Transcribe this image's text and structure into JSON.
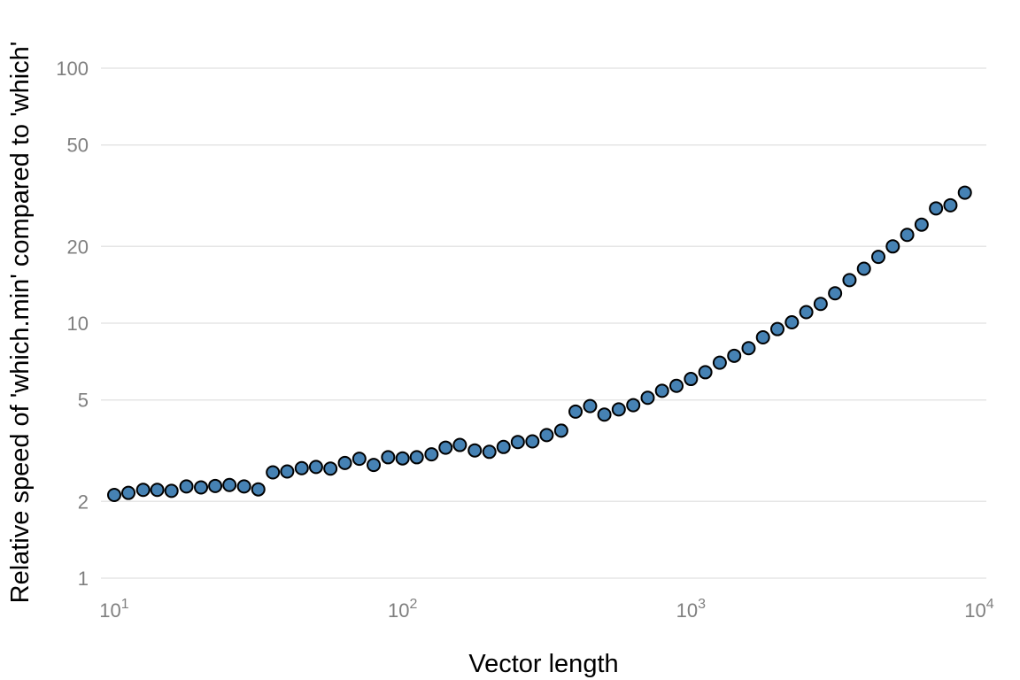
{
  "chart_data": {
    "type": "scatter",
    "title": "",
    "xlabel": "Vector length",
    "ylabel": "Relative speed of 'which.min' compared to 'which'",
    "x_scale": "log10",
    "y_scale": "log10",
    "xlim": [
      10,
      10000
    ],
    "ylim": [
      1,
      100
    ],
    "x_ticks": [
      {
        "value": 10,
        "base": "10",
        "exp": "1"
      },
      {
        "value": 100,
        "base": "10",
        "exp": "2"
      },
      {
        "value": 1000,
        "base": "10",
        "exp": "3"
      },
      {
        "value": 10000,
        "base": "10",
        "exp": "4"
      }
    ],
    "y_ticks": [
      {
        "value": 1,
        "label": "1"
      },
      {
        "value": 2,
        "label": "2"
      },
      {
        "value": 5,
        "label": "5"
      },
      {
        "value": 10,
        "label": "10"
      },
      {
        "value": 20,
        "label": "20"
      },
      {
        "value": 50,
        "label": "50"
      },
      {
        "value": 100,
        "label": "100"
      }
    ],
    "grid": "horizontal",
    "point_fill": "#4682b4",
    "point_stroke": "#000000",
    "x": [
      10,
      11.2,
      12.6,
      14.1,
      15.8,
      17.8,
      20,
      22.4,
      25.1,
      28.2,
      31.6,
      35.5,
      39.8,
      44.7,
      50.1,
      56.2,
      63.1,
      70.8,
      79.4,
      89.1,
      100,
      112,
      126,
      141,
      158,
      178,
      200,
      224,
      251,
      282,
      316,
      355,
      398,
      447,
      501,
      562,
      631,
      708,
      794,
      891,
      1000,
      1122,
      1259,
      1413,
      1585,
      1778,
      1995,
      2239,
      2512,
      2818,
      3162,
      3548,
      3981,
      4467,
      5012,
      5623,
      6310,
      7079,
      7943,
      8913
    ],
    "y": [
      2.12,
      2.16,
      2.22,
      2.22,
      2.2,
      2.29,
      2.27,
      2.3,
      2.32,
      2.29,
      2.23,
      2.6,
      2.62,
      2.7,
      2.73,
      2.69,
      2.83,
      2.94,
      2.78,
      2.98,
      2.95,
      2.98,
      3.06,
      3.25,
      3.33,
      3.17,
      3.13,
      3.27,
      3.42,
      3.44,
      3.64,
      3.79,
      4.5,
      4.73,
      4.38,
      4.59,
      4.77,
      5.1,
      5.43,
      5.68,
      6.04,
      6.42,
      7.0,
      7.45,
      7.98,
      8.8,
      9.48,
      10.08,
      11.05,
      11.9,
      13.1,
      14.75,
      16.35,
      18.2,
      20.0,
      22.2,
      24.35,
      28.2,
      29.0,
      32.5
    ]
  }
}
